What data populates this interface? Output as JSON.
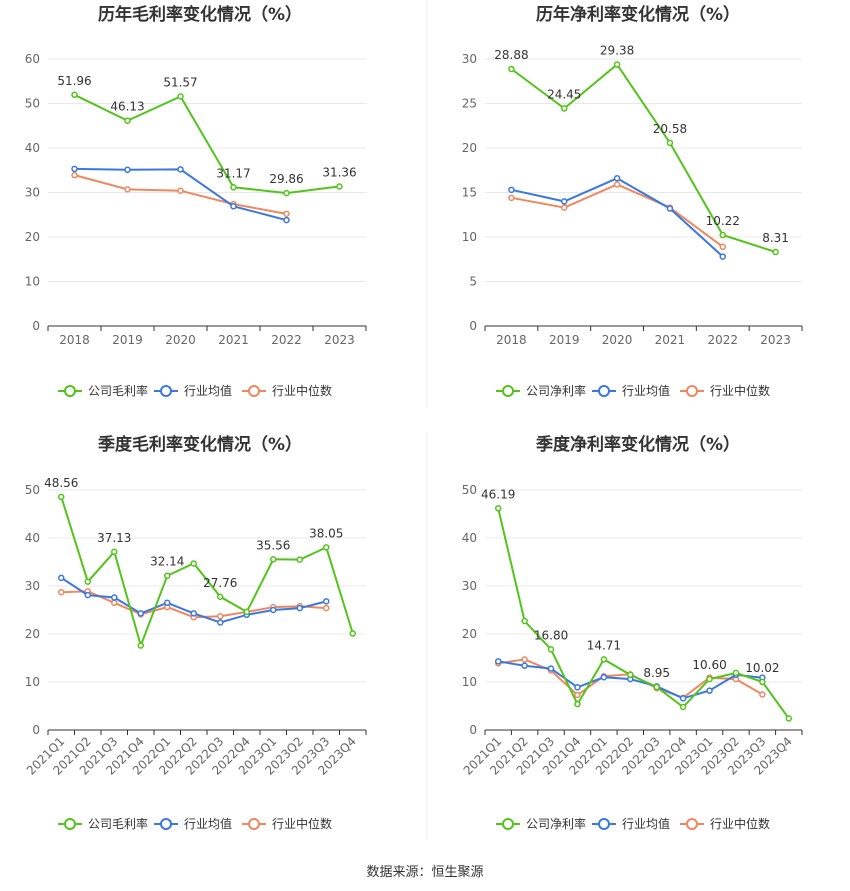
{
  "source_text": "数据来源：恒生聚源",
  "colors": {
    "company": "#52c41a",
    "avg": "#3a78e0",
    "median": "#f0875f",
    "grid": "#e8e8e8",
    "axis": "#333333"
  },
  "chart_data": [
    {
      "type": "line",
      "title": "历年毛利率变化情况（%）",
      "categories": [
        "2018",
        "2019",
        "2020",
        "2021",
        "2022",
        "2023"
      ],
      "yticks": [
        0,
        10,
        20,
        30,
        40,
        50,
        60
      ],
      "ylim": [
        0,
        60
      ],
      "series": [
        {
          "name": "公司毛利率",
          "values": [
            51.96,
            46.13,
            51.57,
            31.17,
            29.86,
            31.36
          ],
          "labels": [
            "51.96",
            "46.13",
            "51.57",
            "31.17",
            "29.86",
            "31.36"
          ]
        },
        {
          "name": "行业均值",
          "values": [
            35.3,
            35.1,
            35.2,
            26.9,
            23.8,
            null
          ]
        },
        {
          "name": "行业中位数",
          "values": [
            33.9,
            30.7,
            30.4,
            27.4,
            25.2,
            null
          ]
        }
      ]
    },
    {
      "type": "line",
      "title": "历年净利率变化情况（%）",
      "categories": [
        "2018",
        "2019",
        "2020",
        "2021",
        "2022",
        "2023"
      ],
      "yticks": [
        0,
        5,
        10,
        15,
        20,
        25,
        30
      ],
      "ylim": [
        0,
        30
      ],
      "series": [
        {
          "name": "公司净利率",
          "values": [
            28.88,
            24.45,
            29.38,
            20.58,
            10.22,
            8.31
          ],
          "labels": [
            "28.88",
            "24.45",
            "29.38",
            "20.58",
            "10.22",
            "8.31"
          ]
        },
        {
          "name": "行业均值",
          "values": [
            15.3,
            14.0,
            16.6,
            13.2,
            7.8,
            null
          ]
        },
        {
          "name": "行业中位数",
          "values": [
            14.4,
            13.3,
            15.9,
            13.3,
            8.9,
            null
          ]
        }
      ]
    },
    {
      "type": "line",
      "title": "季度毛利率变化情况（%）",
      "categories": [
        "2021Q1",
        "2021Q2",
        "2021Q3",
        "2021Q4",
        "2022Q1",
        "2022Q2",
        "2022Q3",
        "2022Q4",
        "2023Q1",
        "2023Q2",
        "2023Q3",
        "2023Q4"
      ],
      "yticks": [
        0,
        10,
        20,
        30,
        40,
        50
      ],
      "ylim": [
        0,
        50
      ],
      "series": [
        {
          "name": "公司毛利率",
          "values": [
            48.56,
            30.9,
            37.13,
            17.6,
            32.14,
            34.7,
            27.76,
            24.6,
            35.56,
            35.5,
            38.05,
            20.1
          ],
          "labels": [
            "48.56",
            "",
            "37.13",
            "",
            "32.14",
            "",
            "27.76",
            "",
            "35.56",
            "",
            "38.05",
            ""
          ]
        },
        {
          "name": "行业均值",
          "values": [
            31.7,
            28.1,
            27.6,
            24.3,
            26.5,
            24.3,
            22.4,
            24.0,
            25.0,
            25.4,
            26.8,
            null
          ]
        },
        {
          "name": "行业中位数",
          "values": [
            28.7,
            28.9,
            26.5,
            24.1,
            25.6,
            23.5,
            23.7,
            24.6,
            25.6,
            25.8,
            25.4,
            null
          ]
        }
      ]
    },
    {
      "type": "line",
      "title": "季度净利率变化情况（%）",
      "categories": [
        "2021Q1",
        "2021Q2",
        "2021Q3",
        "2021Q4",
        "2022Q1",
        "2022Q2",
        "2022Q3",
        "2022Q4",
        "2023Q1",
        "2023Q2",
        "2023Q3",
        "2023Q4"
      ],
      "yticks": [
        0,
        10,
        20,
        30,
        40,
        50
      ],
      "ylim": [
        0,
        50
      ],
      "series": [
        {
          "name": "公司净利率",
          "values": [
            46.19,
            22.7,
            16.8,
            5.4,
            14.71,
            11.5,
            8.95,
            4.8,
            10.6,
            11.9,
            10.02,
            2.4
          ],
          "labels": [
            "46.19",
            "",
            "16.80",
            "",
            "14.71",
            "",
            "8.95",
            "",
            "10.60",
            "",
            "10.02",
            ""
          ]
        },
        {
          "name": "行业均值",
          "values": [
            14.3,
            13.4,
            12.8,
            8.9,
            11.0,
            10.6,
            9.1,
            6.6,
            8.2,
            11.5,
            10.9,
            null
          ]
        },
        {
          "name": "行业中位数",
          "values": [
            13.9,
            14.7,
            12.4,
            7.3,
            11.2,
            11.6,
            8.7,
            6.7,
            10.9,
            10.6,
            7.4,
            null
          ]
        }
      ]
    }
  ]
}
